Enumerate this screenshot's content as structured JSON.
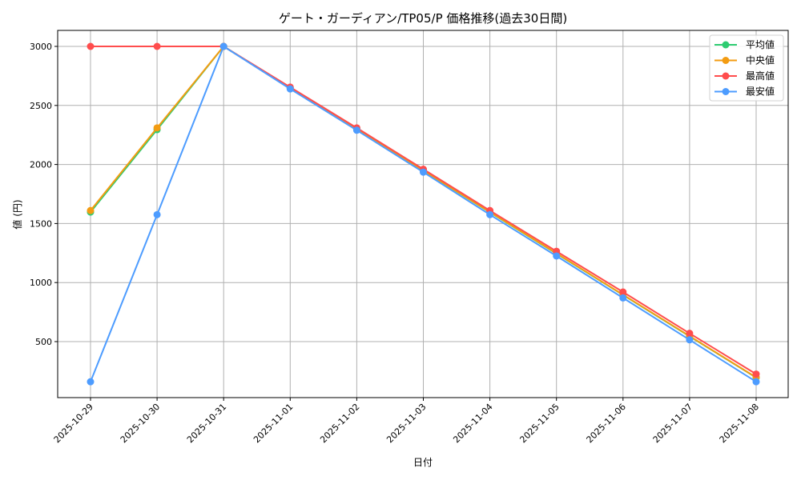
{
  "chart_data": {
    "type": "line",
    "title": "ゲート・ガーディアン/TP05/P 価格推移(過去30日間)",
    "xlabel": "日付",
    "ylabel": "値 (円)",
    "categories": [
      "2025-10-29",
      "2025-10-30",
      "2025-10-31",
      "2025-11-01",
      "2025-11-02",
      "2025-11-03",
      "2025-11-04",
      "2025-11-05",
      "2025-11-06",
      "2025-11-07",
      "2025-11-08"
    ],
    "yticks": [
      500,
      1000,
      1500,
      2000,
      2500,
      3000
    ],
    "ylim": [
      10,
      3130
    ],
    "grid": true,
    "legend_position": "upper right",
    "series": [
      {
        "name": "平均値",
        "color": "#2ecc71",
        "values": [
          1597,
          2295,
          3000,
          2648,
          2298,
          1948,
          1595,
          1245,
          895,
          545,
          195
        ]
      },
      {
        "name": "中央値",
        "color": "#f39c12",
        "values": [
          1610,
          2310,
          3000,
          2648,
          2300,
          1950,
          1597,
          1248,
          897,
          547,
          197
        ]
      },
      {
        "name": "最高値",
        "color": "#ff4d4d",
        "values": [
          3000,
          3000,
          3000,
          2655,
          2310,
          1960,
          1610,
          1265,
          920,
          570,
          225
        ]
      },
      {
        "name": "最安値",
        "color": "#4d9cff",
        "values": [
          160,
          1575,
          3000,
          2640,
          2290,
          1935,
          1575,
          1225,
          870,
          515,
          160
        ]
      }
    ]
  }
}
